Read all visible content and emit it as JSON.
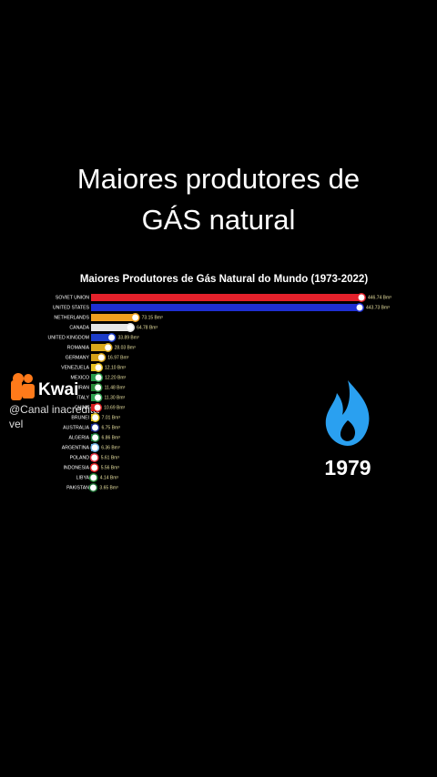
{
  "overlay_title": [
    "Maiores produtores de",
    "GÁS natural"
  ],
  "watermark": {
    "brand": "Kwai",
    "handle": [
      "@Canal inacredita",
      "vel"
    ]
  },
  "year": "1979",
  "chart_data": {
    "type": "bar",
    "orientation": "horizontal",
    "title": "Maiores Produtores de Gás Natural do Mundo (1973-2022)",
    "categories": [
      "SOVIET UNION",
      "UNITED STATES",
      "NETHERLANDS",
      "CANADA",
      "UNITED KINGDOM",
      "ROMANIA",
      "GERMANY",
      "VENEZUELA",
      "MEXICO",
      "IRAN",
      "ITALY",
      "CHINA",
      "BRUNEI",
      "AUSTRALIA",
      "ALGERIA",
      "ARGENTINA",
      "POLAND",
      "INDONESIA",
      "LIBYA",
      "PAKISTAN"
    ],
    "values": [
      446.74,
      443.73,
      73.15,
      64.78,
      33.89,
      28.03,
      16.97,
      12.1,
      12.2,
      11.48,
      11.3,
      10.69,
      7.01,
      6.75,
      6.86,
      6.36,
      5.61,
      5.56,
      4.14,
      3.65
    ],
    "value_labels": [
      "446.74 Bm³",
      "443.73 Bm³",
      "73.15 Bm³",
      "64.78 Bm³",
      "33.89 Bm³",
      "28.03 Bm³",
      "16.97 Bm³",
      "12.10 Bm³",
      "12.20 Bm³",
      "11.48 Bm³",
      "11.30 Bm³",
      "10.69 Bm³",
      "7.01 Bm³",
      "6.75 Bm³",
      "6.86 Bm³",
      "6.36 Bm³",
      "5.61 Bm³",
      "5.56 Bm³",
      "4.14 Bm³",
      "3.65 Bm³"
    ],
    "colors": [
      "#e3212b",
      "#1f2fd2",
      "#f0a020",
      "#e6e6e6",
      "#1c3cc8",
      "#d9a81c",
      "#d4a017",
      "#e8c020",
      "#2a9a4a",
      "#2a8a3a",
      "#30a050",
      "#d82020",
      "#e0c020",
      "#1a2a8a",
      "#208040",
      "#6aaee0",
      "#e03040",
      "#e02020",
      "#208030",
      "#1a6a30"
    ]
  }
}
